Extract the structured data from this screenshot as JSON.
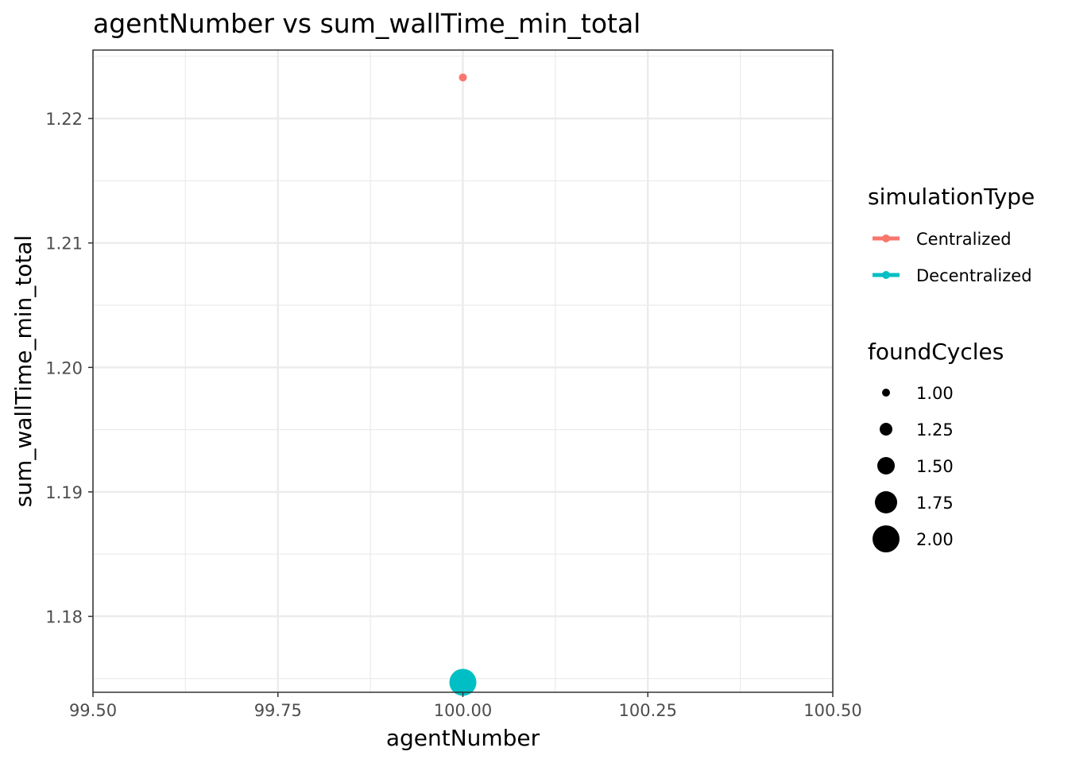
{
  "chart_data": {
    "type": "scatter",
    "title": "agentNumber  vs  sum_wallTime_min_total",
    "xlabel": "agentNumber",
    "ylabel": "sum_wallTime_min_total",
    "xlim": [
      99.5,
      100.5
    ],
    "ylim": [
      1.1739,
      1.2255
    ],
    "x_ticks": [
      99.5,
      99.75,
      100.0,
      100.25,
      100.5
    ],
    "x_tick_labels": [
      "99.50",
      "99.75",
      "100.00",
      "100.25",
      "100.50"
    ],
    "y_ticks": [
      1.18,
      1.19,
      1.2,
      1.21,
      1.22
    ],
    "y_tick_labels": [
      "1.18",
      "1.19",
      "1.20",
      "1.21",
      "1.22"
    ],
    "grid": true,
    "legend_position": "right",
    "series": [
      {
        "name": "Centralized",
        "color": "#F8766D",
        "points": [
          {
            "x": 100.0,
            "y": 1.2233,
            "foundCycles": 1.0
          }
        ]
      },
      {
        "name": "Decentralized",
        "color": "#00BFC4",
        "points": [
          {
            "x": 100.0,
            "y": 1.1747,
            "foundCycles": 2.0
          }
        ]
      }
    ],
    "legend_color": {
      "title": "simulationType",
      "entries": [
        {
          "label": "Centralized",
          "color": "#F8766D"
        },
        {
          "label": "Decentralized",
          "color": "#00BFC4"
        }
      ]
    },
    "legend_size": {
      "title": "foundCycles",
      "entries": [
        {
          "label": "1.00",
          "value": 1.0
        },
        {
          "label": "1.25",
          "value": 1.25
        },
        {
          "label": "1.50",
          "value": 1.5
        },
        {
          "label": "1.75",
          "value": 1.75
        },
        {
          "label": "2.00",
          "value": 2.0
        }
      ]
    }
  }
}
